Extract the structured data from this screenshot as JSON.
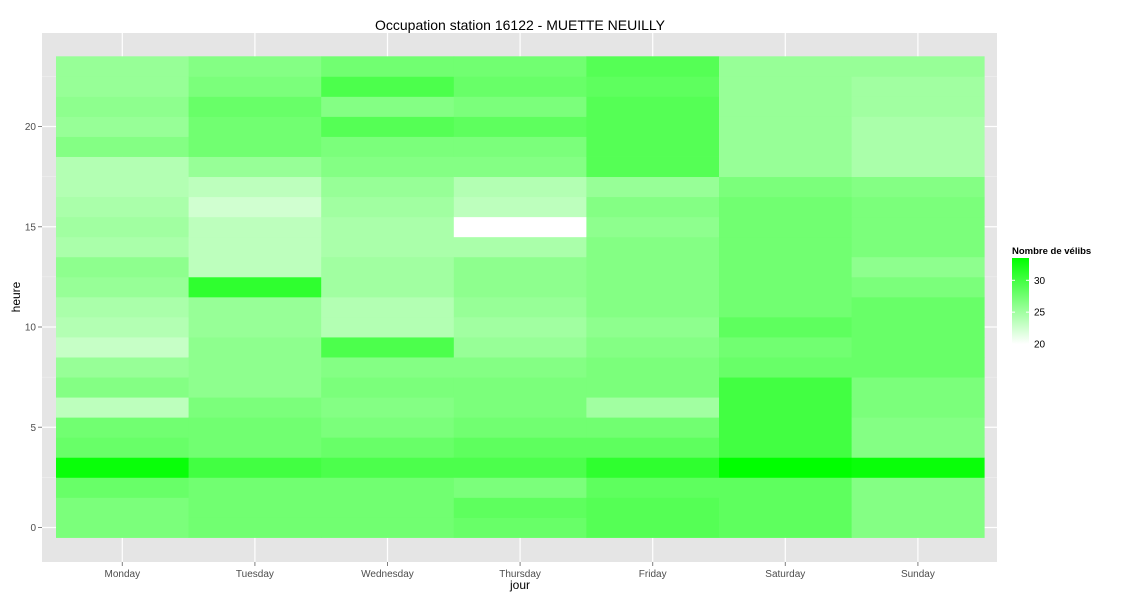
{
  "chart_data": {
    "type": "heatmap",
    "title": "Occupation station 16122 - MUETTE NEUILLY",
    "xlabel": "jour",
    "ylabel": "heure",
    "x_categories": [
      "Monday",
      "Tuesday",
      "Wednesday",
      "Thursday",
      "Friday",
      "Saturday",
      "Sunday"
    ],
    "y_range": [
      0,
      23
    ],
    "y_ticks": [
      0,
      5,
      10,
      15,
      20
    ],
    "value_range": [
      20,
      33.5
    ],
    "colors": {
      "low": "#ffffff",
      "high": "#00ff00",
      "panel": "#e5e5e5",
      "grid": "#ffffff"
    },
    "values": {
      "Monday": [
        27,
        27,
        28,
        33,
        28,
        27.5,
        23.5,
        26.5,
        25.5,
        23,
        24,
        24.5,
        25.5,
        26,
        24.5,
        25,
        24.5,
        24,
        24,
        26.5,
        25.5,
        26,
        25.5,
        25.5
      ],
      "Tuesday": [
        27.5,
        27.5,
        27.5,
        30,
        27.5,
        27.5,
        27,
        26,
        26,
        26,
        25.5,
        25.5,
        31,
        23.5,
        23.5,
        23.5,
        22.5,
        23.5,
        25.5,
        27.5,
        27.5,
        28,
        27,
        26.5
      ],
      "Wednesday": [
        27.5,
        27.5,
        27.5,
        29.5,
        28,
        27,
        26.5,
        27,
        26.5,
        29.5,
        24,
        24,
        25,
        25,
        24.5,
        24.5,
        25,
        25.5,
        26.5,
        27,
        29,
        26.5,
        29.5,
        27.5
      ],
      "Thursday": [
        28,
        28.5,
        27,
        29.5,
        28.5,
        27.5,
        27,
        27,
        26.5,
        25.5,
        25,
        25.5,
        26,
        26,
        24.5,
        20,
        23.5,
        24,
        26.5,
        27,
        28.5,
        27,
        28,
        27.5
      ],
      "Friday": [
        29,
        29,
        28.5,
        31,
        28.5,
        27.5,
        25,
        27,
        27,
        26.5,
        26,
        26.5,
        26.5,
        26.5,
        26.5,
        26,
        26.5,
        25.5,
        29,
        29,
        29,
        29,
        28.5,
        29
      ],
      "Saturday": [
        28.5,
        28.5,
        28.5,
        33.5,
        30,
        30,
        30,
        30,
        28,
        27.5,
        28.5,
        27.5,
        27.5,
        27.5,
        27.5,
        27.5,
        27.5,
        27,
        25.5,
        25.5,
        25.5,
        25.5,
        25.5,
        25.5
      ],
      "Sunday": [
        26.5,
        26.5,
        26.5,
        33,
        26.5,
        26.5,
        27,
        27,
        28,
        28,
        28,
        28,
        27,
        26,
        27,
        27,
        27,
        26.5,
        24.5,
        24.5,
        24.5,
        25,
        25,
        25.5
      ]
    },
    "legend": {
      "title": "Nombre de vélibs",
      "ticks": [
        20,
        25,
        30
      ]
    }
  }
}
